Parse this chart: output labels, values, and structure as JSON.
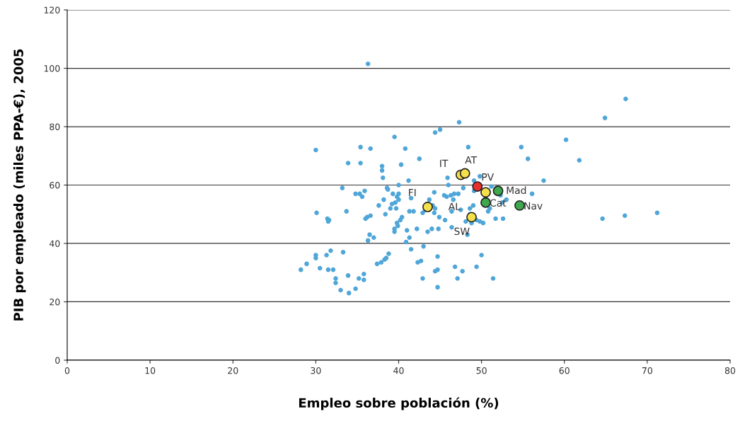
{
  "chart_data": {
    "type": "scatter",
    "xlabel": "Empleo sobre población (%)",
    "ylabel": "PIB por empleado (miles PPA-€), 2005",
    "xlim": [
      0,
      80
    ],
    "ylim": [
      0,
      120
    ],
    "xticks": [
      0,
      10,
      20,
      30,
      40,
      50,
      60,
      70,
      80
    ],
    "yticks": [
      0,
      20,
      40,
      60,
      80,
      100,
      120
    ],
    "grid": "y",
    "legend": false,
    "marker": "circle",
    "series": [
      {
        "color": "#4fa6d8",
        "x": [
          28.2,
          28.9,
          30,
          30,
          30.1,
          30,
          30.5,
          31.3,
          31.4,
          31.5,
          31.6,
          31.5,
          31.8,
          32.1,
          32.4,
          32.4,
          33,
          33.2,
          33.3,
          33.7,
          33.9,
          33.9,
          34,
          34.8,
          34.8,
          35.2,
          35.4,
          35.3,
          35.4,
          35.6,
          35.8,
          35.8,
          35.9,
          36,
          36.2,
          36.3,
          36.3,
          36.5,
          36.6,
          36.6,
          37,
          37.4,
          37.6,
          37.9,
          38,
          38,
          38.1,
          38.2,
          38.3,
          38.4,
          38.5,
          38.6,
          38.7,
          38.8,
          39,
          39.2,
          39.3,
          39.5,
          39.5,
          39.5,
          39.6,
          39.7,
          39.8,
          40,
          40,
          40,
          39.8,
          39.9,
          40.2,
          40.3,
          40.4,
          40.8,
          40.9,
          41,
          41.2,
          41.3,
          41.3,
          41.5,
          41.5,
          41.8,
          42.2,
          42.3,
          42.5,
          42.7,
          42.9,
          43,
          42.9,
          43.2,
          43.5,
          43.7,
          44,
          44.1,
          44.3,
          44.3,
          44.4,
          44.4,
          44.4,
          44.7,
          44.7,
          44.7,
          44.8,
          45,
          44.9,
          45.5,
          45.8,
          45.6,
          45.9,
          46,
          46.3,
          46.4,
          46.4,
          46.6,
          46.7,
          46.8,
          47.1,
          47.2,
          47.3,
          47.5,
          47.7,
          48.1,
          48.3,
          48.4,
          48.6,
          48.6,
          48.8,
          49.1,
          49.1,
          49.4,
          49.4,
          49.8,
          49.8,
          50,
          50.2,
          50.5,
          50.8,
          51,
          51.2,
          51.4,
          51.7,
          51.8,
          52.3,
          52.6,
          54.8,
          55.6,
          56.1,
          57.5,
          60.2,
          61.8,
          64.6,
          64.9,
          67.3,
          67.4,
          71.2,
          53,
          52.5,
          47.8,
          49
        ],
        "values": [
          31,
          33,
          35,
          36,
          50.5,
          72,
          31.5,
          36,
          48.5,
          47.5,
          48,
          31,
          37.5,
          31,
          26.5,
          28,
          24,
          59,
          37,
          51,
          67.5,
          29,
          23,
          57,
          24.5,
          28,
          73,
          57,
          67.5,
          56,
          29.5,
          27.5,
          58,
          48.5,
          49,
          41,
          101.5,
          43,
          49.5,
          72.5,
          42,
          33,
          53,
          33.5,
          66.5,
          65,
          62.5,
          55,
          34.5,
          50,
          35,
          59,
          58.5,
          36.5,
          52,
          53.5,
          57,
          76.5,
          45,
          44,
          54,
          52,
          56,
          55,
          57,
          60,
          47,
          46,
          48,
          67,
          49,
          72.5,
          40.5,
          44.5,
          61.5,
          51,
          42,
          55.5,
          38,
          51,
          45,
          33.5,
          69,
          34,
          28,
          39,
          50.5,
          51.5,
          44,
          55,
          45,
          53,
          50.5,
          57.5,
          52,
          30.5,
          78,
          31,
          25,
          35.5,
          45,
          79,
          49,
          56.5,
          56,
          48,
          62.5,
          60,
          56.5,
          45.5,
          51,
          55,
          57,
          32,
          28,
          57,
          81.5,
          51.5,
          30.5,
          47.5,
          43,
          73,
          52,
          50,
          47,
          61.5,
          58,
          32,
          48,
          63,
          47.5,
          36,
          47,
          null,
          51,
          52,
          59.5,
          28,
          48.5,
          59,
          56.5,
          48.5,
          73,
          69,
          57,
          61.5,
          75.5,
          68.5,
          48.5,
          83,
          49.5,
          89.5,
          50.5,
          55,
          54,
          59,
          53
        ]
      },
      {
        "color": "#f5e04b",
        "x": [
          47.5,
          48,
          50.5,
          43.5,
          48.8
        ],
        "values": [
          63.5,
          64,
          57.5,
          52.5,
          49
        ]
      },
      {
        "color": "#e8302a",
        "x": [
          49.5
        ],
        "values": [
          59.5
        ]
      },
      {
        "color": "#3fa84f",
        "x": [
          52,
          50.5,
          54.6
        ],
        "values": [
          58,
          54,
          53
        ]
      }
    ],
    "annotations": [
      {
        "text": "IT",
        "x": 47.5,
        "y": 63.5
      },
      {
        "text": "AT",
        "x": 48,
        "y": 64
      },
      {
        "text": "PV",
        "x": 49.5,
        "y": 59.5
      },
      {
        "text": "AL",
        "x": 50.5,
        "y": 57.5
      },
      {
        "text": "Mad",
        "x": 52,
        "y": 58
      },
      {
        "text": "Cat",
        "x": 50.5,
        "y": 54
      },
      {
        "text": "Nav",
        "x": 54.6,
        "y": 53
      },
      {
        "text": "FI",
        "x": 43.5,
        "y": 52.5
      },
      {
        "text": "SW",
        "x": 48.8,
        "y": 49
      }
    ]
  }
}
